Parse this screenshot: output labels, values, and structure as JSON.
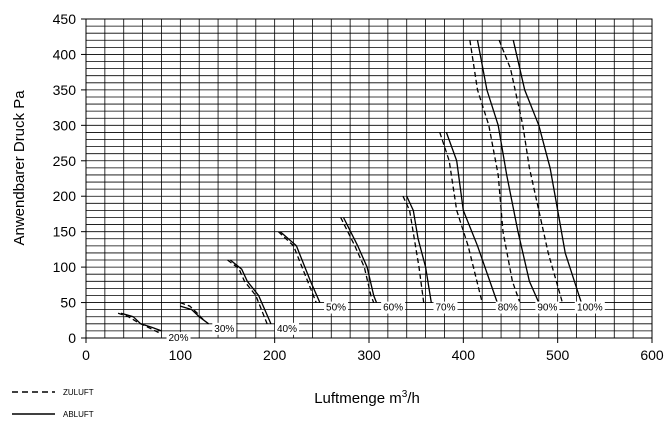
{
  "chart_data": {
    "type": "line",
    "title": "",
    "xlabel": "Luftmenge m",
    "xlabel_sup": "3",
    "xlabel_suffix": "/h",
    "ylabel": "Anwendbarer Druck Pa",
    "xlim": [
      0,
      600
    ],
    "ylim": [
      0,
      450
    ],
    "xticks": [
      0,
      100,
      200,
      300,
      400,
      500,
      600
    ],
    "yticks": [
      0,
      50,
      100,
      150,
      200,
      250,
      300,
      350,
      400,
      450
    ],
    "grid": true,
    "legend": [
      {
        "name": "ZULUFT",
        "style": "dashed"
      },
      {
        "name": "ABLUFT",
        "style": "solid"
      }
    ],
    "curves": [
      {
        "label": "20%",
        "zuluft": [
          [
            34,
            35
          ],
          [
            45,
            30
          ],
          [
            55,
            22
          ],
          [
            66,
            15
          ],
          [
            78,
            7
          ]
        ],
        "abluft": [
          [
            37,
            35
          ],
          [
            50,
            30
          ],
          [
            58,
            20
          ],
          [
            70,
            15
          ],
          [
            80,
            10
          ]
        ]
      },
      {
        "label": "30%",
        "zuluft": [
          [
            100,
            50
          ],
          [
            110,
            45
          ],
          [
            118,
            35
          ],
          [
            125,
            25
          ]
        ],
        "abluft": [
          [
            100,
            45
          ],
          [
            112,
            40
          ],
          [
            120,
            30
          ],
          [
            130,
            20
          ]
        ]
      },
      {
        "label": "40%",
        "zuluft": [
          [
            150,
            110
          ],
          [
            162,
            98
          ],
          [
            168,
            80
          ],
          [
            180,
            60
          ],
          [
            192,
            20
          ]
        ],
        "abluft": [
          [
            153,
            110
          ],
          [
            165,
            97
          ],
          [
            171,
            80
          ],
          [
            183,
            60
          ],
          [
            196,
            20
          ]
        ]
      },
      {
        "label": "50%",
        "zuluft": [
          [
            204,
            150
          ],
          [
            220,
            130
          ],
          [
            235,
            80
          ],
          [
            244,
            50
          ]
        ],
        "abluft": [
          [
            206,
            150
          ],
          [
            223,
            130
          ],
          [
            238,
            80
          ],
          [
            248,
            50
          ]
        ]
      },
      {
        "label": "60%",
        "zuluft": [
          [
            270,
            170
          ],
          [
            285,
            130
          ],
          [
            295,
            100
          ],
          [
            302,
            60
          ],
          [
            305,
            50
          ]
        ],
        "abluft": [
          [
            273,
            170
          ],
          [
            288,
            130
          ],
          [
            298,
            100
          ],
          [
            305,
            60
          ],
          [
            308,
            50
          ]
        ]
      },
      {
        "label": "70%",
        "zuluft": [
          [
            336,
            200
          ],
          [
            343,
            180
          ],
          [
            348,
            140
          ],
          [
            353,
            100
          ],
          [
            358,
            50
          ]
        ],
        "abluft": [
          [
            340,
            200
          ],
          [
            347,
            180
          ],
          [
            352,
            140
          ],
          [
            360,
            100
          ],
          [
            366,
            50
          ]
        ]
      },
      {
        "label": "80%",
        "zuluft": [
          [
            375,
            290
          ],
          [
            385,
            250
          ],
          [
            393,
            180
          ],
          [
            405,
            130
          ],
          [
            420,
            50
          ]
        ],
        "abluft": [
          [
            382,
            290
          ],
          [
            393,
            250
          ],
          [
            400,
            180
          ],
          [
            415,
            130
          ],
          [
            436,
            50
          ]
        ]
      },
      {
        "label": "90%",
        "zuluft": [
          [
            407,
            420
          ],
          [
            415,
            350
          ],
          [
            427,
            300
          ],
          [
            437,
            230
          ],
          [
            442,
            150
          ],
          [
            452,
            80
          ],
          [
            460,
            50
          ]
        ],
        "abluft": [
          [
            415,
            420
          ],
          [
            425,
            350
          ],
          [
            437,
            300
          ],
          [
            446,
            230
          ],
          [
            458,
            150
          ],
          [
            470,
            80
          ],
          [
            480,
            50
          ]
        ]
      },
      {
        "label": "100%",
        "zuluft": [
          [
            438,
            420
          ],
          [
            450,
            380
          ],
          [
            463,
            300
          ],
          [
            470,
            240
          ],
          [
            480,
            180
          ],
          [
            490,
            120
          ],
          [
            505,
            50
          ]
        ],
        "abluft": [
          [
            453,
            420
          ],
          [
            465,
            350
          ],
          [
            480,
            300
          ],
          [
            492,
            240
          ],
          [
            500,
            180
          ],
          [
            508,
            120
          ],
          [
            525,
            50
          ]
        ]
      }
    ]
  }
}
